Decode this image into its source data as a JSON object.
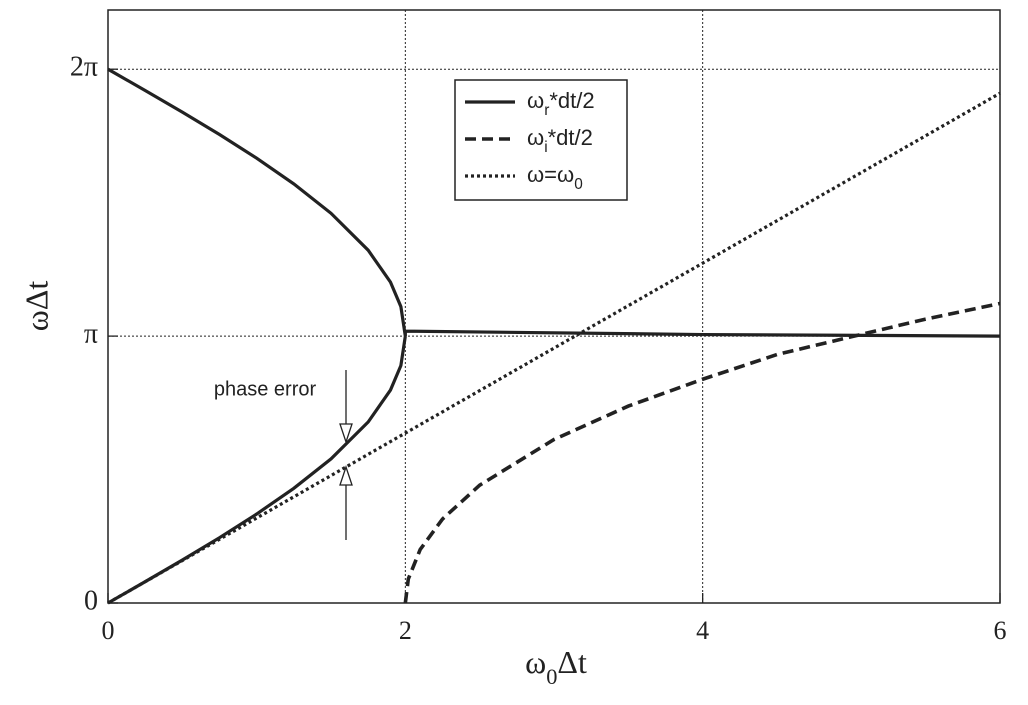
{
  "chart_data": {
    "type": "line",
    "xlabel": "ω0Δt",
    "ylabel": "ωΔt",
    "xlim": [
      0,
      6
    ],
    "ylim": [
      0,
      6.98
    ],
    "xticks": [
      0,
      2,
      4,
      6
    ],
    "yticks": [
      0,
      {
        "value": 3.1416,
        "label": "π"
      },
      {
        "value": 6.2832,
        "label": "2π"
      }
    ],
    "grid": true,
    "legend": "upper center",
    "annotation": "phase error",
    "series": [
      {
        "name": "ωr*dt/2",
        "color": "#222222",
        "linestyle": "solid",
        "x": [
          0,
          0.25,
          0.5,
          0.75,
          1,
          1.25,
          1.5,
          1.75,
          1.9,
          1.97,
          2,
          2,
          4,
          6,
          null,
          0,
          0.25,
          0.5,
          0.75,
          1,
          1.25,
          1.5,
          1.75,
          1.9,
          1.97,
          2
        ],
        "values": [
          6.2832,
          6.0325,
          5.7778,
          5.5144,
          5.236,
          4.9329,
          4.5871,
          4.1525,
          3.7767,
          3.4888,
          3.1416,
          3.2,
          3.16,
          3.1416,
          null,
          0,
          0.2507,
          0.5054,
          0.7688,
          1.0472,
          1.3503,
          1.6961,
          2.1307,
          2.5065,
          2.7944,
          3.1416
        ]
      },
      {
        "name": "ωi*dt/2",
        "color": "#222222",
        "linestyle": "dashed",
        "x": [
          2,
          2.02,
          2.1,
          2.25,
          2.5,
          3,
          3.5,
          4,
          4.5,
          5,
          5.5,
          6
        ],
        "values": [
          0,
          0.283,
          0.6298,
          0.9884,
          1.3863,
          1.9248,
          2.3176,
          2.6339,
          2.9248,
          3.1336,
          3.342,
          3.5255
        ]
      },
      {
        "name": "ω=ω0",
        "color": "#222222",
        "linestyle": "dotted",
        "x": [
          0,
          6
        ],
        "values": [
          0,
          6
        ]
      }
    ]
  }
}
